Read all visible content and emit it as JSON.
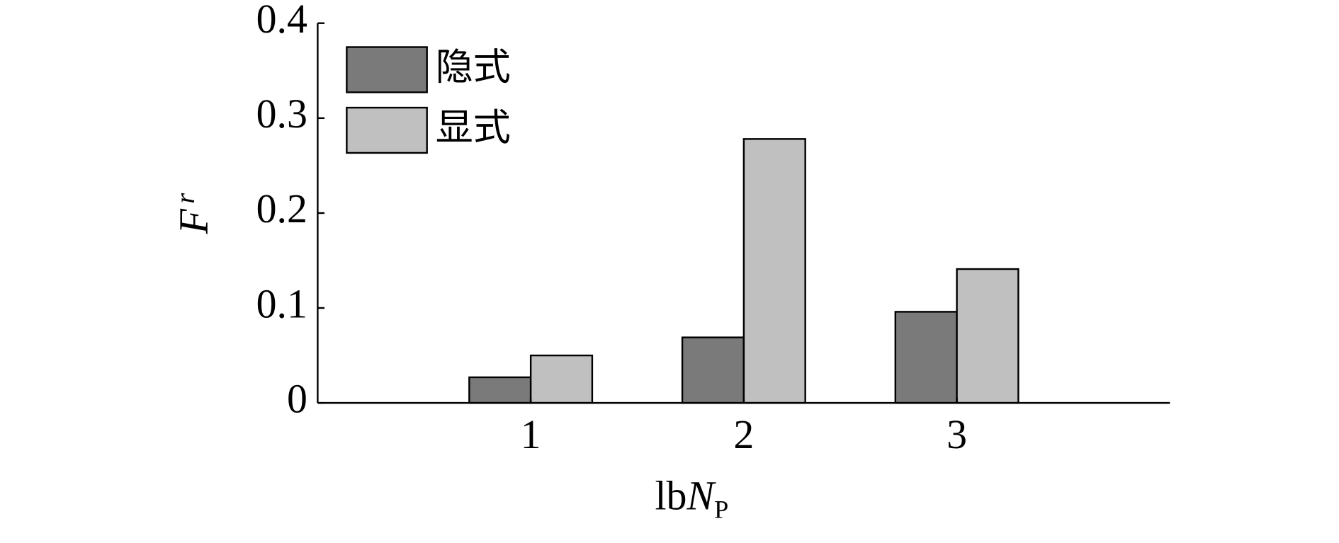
{
  "chart_data": {
    "type": "bar",
    "x_label": {
      "main": "lb",
      "italic": "N",
      "sub": "P"
    },
    "y_label": {
      "main": "F",
      "sub": "r"
    },
    "x": [
      1,
      2,
      3
    ],
    "xlim": [
      0,
      4
    ],
    "xticks": [
      1,
      2,
      3
    ],
    "ylim": [
      0,
      0.4
    ],
    "yticks": [
      0,
      0.1,
      0.2,
      0.3,
      0.4
    ],
    "legend": "upper left",
    "series": [
      {
        "name": "隐式",
        "color": "#7a7a7a",
        "values": [
          0.027,
          0.069,
          0.096
        ]
      },
      {
        "name": "显式",
        "color": "#c0c0c0",
        "values": [
          0.05,
          0.278,
          0.141
        ]
      }
    ]
  }
}
